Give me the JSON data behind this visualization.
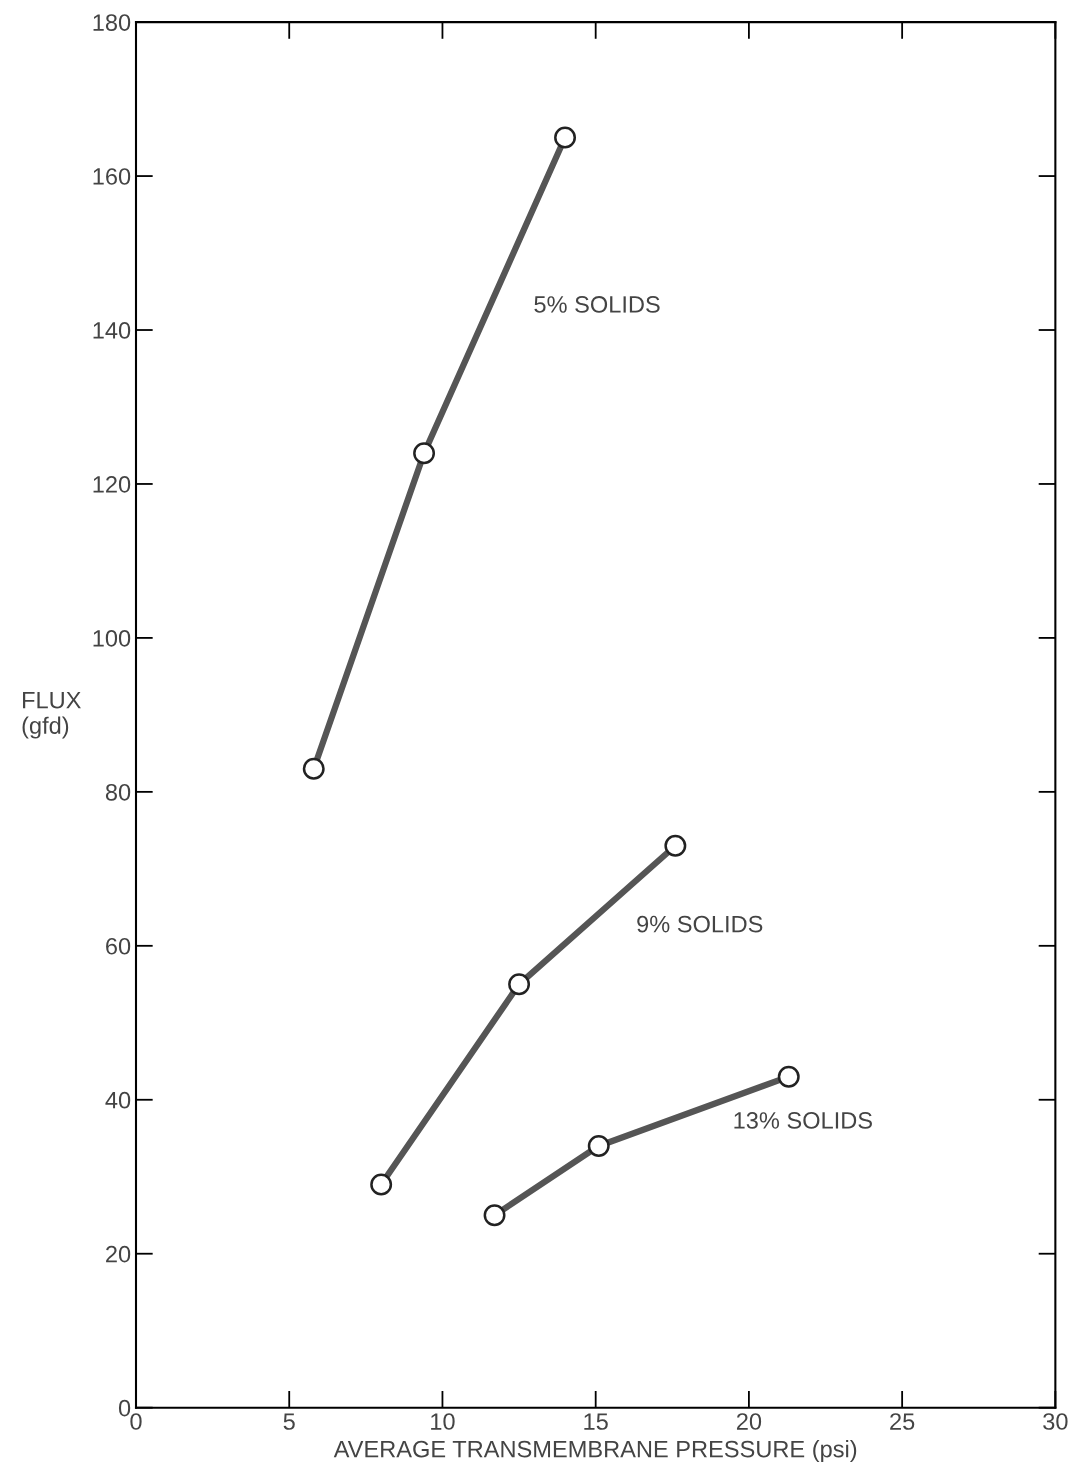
{
  "chart_data": {
    "type": "line",
    "xlabel": "AVERAGE TRANSMEMBRANE PRESSURE (psi)",
    "ylabel": "FLUX\n(gfd)",
    "xlim": [
      0,
      30
    ],
    "xticks": [
      0,
      5,
      10,
      15,
      20,
      25,
      30
    ],
    "ylim": [
      0,
      180
    ],
    "yticks": [
      0,
      20,
      40,
      60,
      80,
      100,
      120,
      140,
      160,
      180
    ],
    "marker": "circle",
    "line_style": "solid",
    "grid": false,
    "legend": false,
    "series": [
      {
        "name": "5% SOLIDS",
        "color": "#555555",
        "x": [
          5.8,
          9.4,
          14.0
        ],
        "values": [
          83,
          124,
          165
        ]
      },
      {
        "name": "9% SOLIDS",
        "color": "#555555",
        "x": [
          8.0,
          12.5,
          17.6
        ],
        "values": [
          29,
          55,
          73
        ]
      },
      {
        "name": "13% SOLIDS",
        "color": "#555555",
        "x": [
          11.7,
          15.1,
          21.3
        ],
        "values": [
          25,
          34,
          43
        ]
      }
    ]
  }
}
